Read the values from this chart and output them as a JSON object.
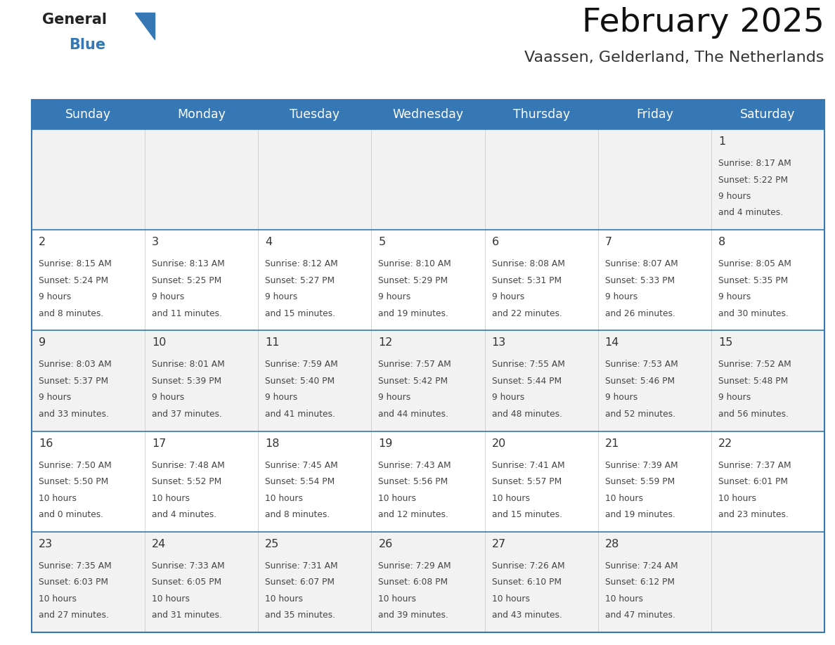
{
  "title": "February 2025",
  "subtitle": "Vaassen, Gelderland, The Netherlands",
  "header_color": "#3578b5",
  "header_text_color": "#ffffff",
  "days_of_week": [
    "Sunday",
    "Monday",
    "Tuesday",
    "Wednesday",
    "Thursday",
    "Friday",
    "Saturday"
  ],
  "border_color": "#3578b5",
  "text_color": "#444444",
  "day_num_color": "#333333",
  "cell_bg_even": "#f2f2f2",
  "cell_bg_odd": "#ffffff",
  "calendar_data": [
    [
      null,
      null,
      null,
      null,
      null,
      null,
      {
        "day": 1,
        "sunrise": "8:17 AM",
        "sunset": "5:22 PM",
        "daylight": "9 hours\nand 4 minutes."
      }
    ],
    [
      {
        "day": 2,
        "sunrise": "8:15 AM",
        "sunset": "5:24 PM",
        "daylight": "9 hours\nand 8 minutes."
      },
      {
        "day": 3,
        "sunrise": "8:13 AM",
        "sunset": "5:25 PM",
        "daylight": "9 hours\nand 11 minutes."
      },
      {
        "day": 4,
        "sunrise": "8:12 AM",
        "sunset": "5:27 PM",
        "daylight": "9 hours\nand 15 minutes."
      },
      {
        "day": 5,
        "sunrise": "8:10 AM",
        "sunset": "5:29 PM",
        "daylight": "9 hours\nand 19 minutes."
      },
      {
        "day": 6,
        "sunrise": "8:08 AM",
        "sunset": "5:31 PM",
        "daylight": "9 hours\nand 22 minutes."
      },
      {
        "day": 7,
        "sunrise": "8:07 AM",
        "sunset": "5:33 PM",
        "daylight": "9 hours\nand 26 minutes."
      },
      {
        "day": 8,
        "sunrise": "8:05 AM",
        "sunset": "5:35 PM",
        "daylight": "9 hours\nand 30 minutes."
      }
    ],
    [
      {
        "day": 9,
        "sunrise": "8:03 AM",
        "sunset": "5:37 PM",
        "daylight": "9 hours\nand 33 minutes."
      },
      {
        "day": 10,
        "sunrise": "8:01 AM",
        "sunset": "5:39 PM",
        "daylight": "9 hours\nand 37 minutes."
      },
      {
        "day": 11,
        "sunrise": "7:59 AM",
        "sunset": "5:40 PM",
        "daylight": "9 hours\nand 41 minutes."
      },
      {
        "day": 12,
        "sunrise": "7:57 AM",
        "sunset": "5:42 PM",
        "daylight": "9 hours\nand 44 minutes."
      },
      {
        "day": 13,
        "sunrise": "7:55 AM",
        "sunset": "5:44 PM",
        "daylight": "9 hours\nand 48 minutes."
      },
      {
        "day": 14,
        "sunrise": "7:53 AM",
        "sunset": "5:46 PM",
        "daylight": "9 hours\nand 52 minutes."
      },
      {
        "day": 15,
        "sunrise": "7:52 AM",
        "sunset": "5:48 PM",
        "daylight": "9 hours\nand 56 minutes."
      }
    ],
    [
      {
        "day": 16,
        "sunrise": "7:50 AM",
        "sunset": "5:50 PM",
        "daylight": "10 hours\nand 0 minutes."
      },
      {
        "day": 17,
        "sunrise": "7:48 AM",
        "sunset": "5:52 PM",
        "daylight": "10 hours\nand 4 minutes."
      },
      {
        "day": 18,
        "sunrise": "7:45 AM",
        "sunset": "5:54 PM",
        "daylight": "10 hours\nand 8 minutes."
      },
      {
        "day": 19,
        "sunrise": "7:43 AM",
        "sunset": "5:56 PM",
        "daylight": "10 hours\nand 12 minutes."
      },
      {
        "day": 20,
        "sunrise": "7:41 AM",
        "sunset": "5:57 PM",
        "daylight": "10 hours\nand 15 minutes."
      },
      {
        "day": 21,
        "sunrise": "7:39 AM",
        "sunset": "5:59 PM",
        "daylight": "10 hours\nand 19 minutes."
      },
      {
        "day": 22,
        "sunrise": "7:37 AM",
        "sunset": "6:01 PM",
        "daylight": "10 hours\nand 23 minutes."
      }
    ],
    [
      {
        "day": 23,
        "sunrise": "7:35 AM",
        "sunset": "6:03 PM",
        "daylight": "10 hours\nand 27 minutes."
      },
      {
        "day": 24,
        "sunrise": "7:33 AM",
        "sunset": "6:05 PM",
        "daylight": "10 hours\nand 31 minutes."
      },
      {
        "day": 25,
        "sunrise": "7:31 AM",
        "sunset": "6:07 PM",
        "daylight": "10 hours\nand 35 minutes."
      },
      {
        "day": 26,
        "sunrise": "7:29 AM",
        "sunset": "6:08 PM",
        "daylight": "10 hours\nand 39 minutes."
      },
      {
        "day": 27,
        "sunrise": "7:26 AM",
        "sunset": "6:10 PM",
        "daylight": "10 hours\nand 43 minutes."
      },
      {
        "day": 28,
        "sunrise": "7:24 AM",
        "sunset": "6:12 PM",
        "daylight": "10 hours\nand 47 minutes."
      },
      null
    ]
  ]
}
